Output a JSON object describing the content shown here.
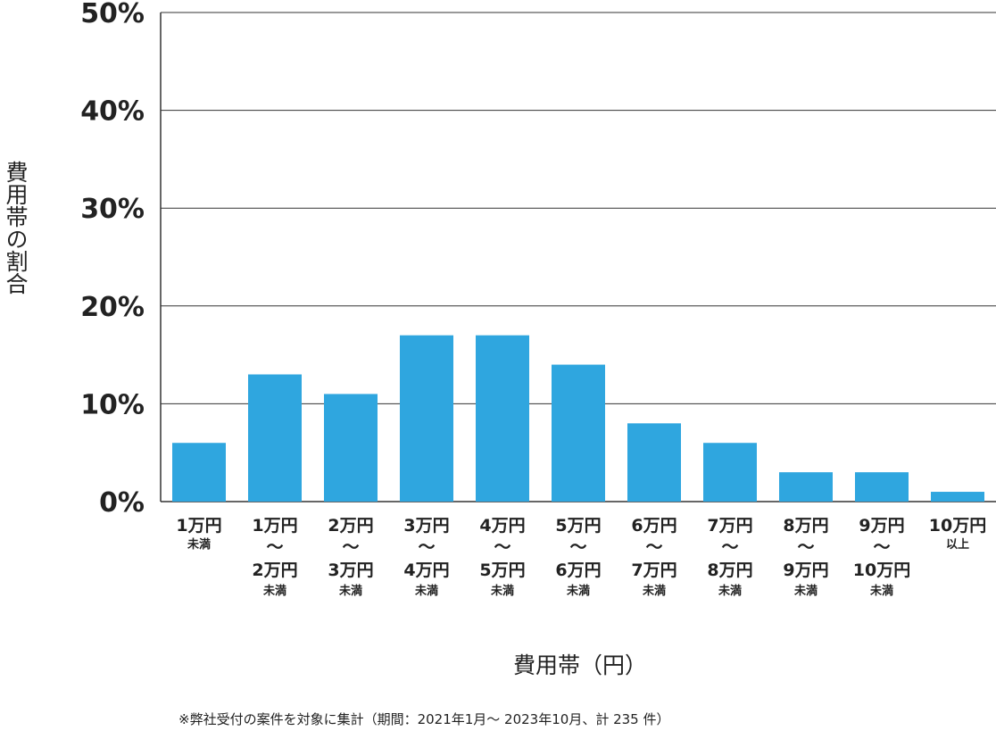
{
  "chart_data": {
    "type": "bar",
    "title": "",
    "xlabel": "費用帯（円）",
    "ylabel": "費用帯の割合",
    "ylim": [
      0,
      50
    ],
    "yticks": [
      "0%",
      "10%",
      "20%",
      "30%",
      "40%",
      "50%"
    ],
    "ytick_values": [
      0,
      10,
      20,
      30,
      40,
      50
    ],
    "grid": true,
    "bar_color": "#2fa6df",
    "categories": [
      [
        "1万円",
        "未満"
      ],
      [
        "1万円",
        "〜",
        "2万円",
        "未満"
      ],
      [
        "2万円",
        "〜",
        "3万円",
        "未満"
      ],
      [
        "3万円",
        "〜",
        "4万円",
        "未満"
      ],
      [
        "4万円",
        "〜",
        "5万円",
        "未満"
      ],
      [
        "5万円",
        "〜",
        "6万円",
        "未満"
      ],
      [
        "6万円",
        "〜",
        "7万円",
        "未満"
      ],
      [
        "7万円",
        "〜",
        "8万円",
        "未満"
      ],
      [
        "8万円",
        "〜",
        "9万円",
        "未満"
      ],
      [
        "9万円",
        "〜",
        "10万円",
        "未満"
      ],
      [
        "10万円",
        "以上"
      ]
    ],
    "values": [
      6,
      13,
      11,
      17,
      17,
      14,
      8,
      6,
      3,
      3,
      1
    ]
  },
  "footnote": "※弊社受付の案件を対象に集計（期間：2021年1月～ 2023年10月、計 235 件）"
}
